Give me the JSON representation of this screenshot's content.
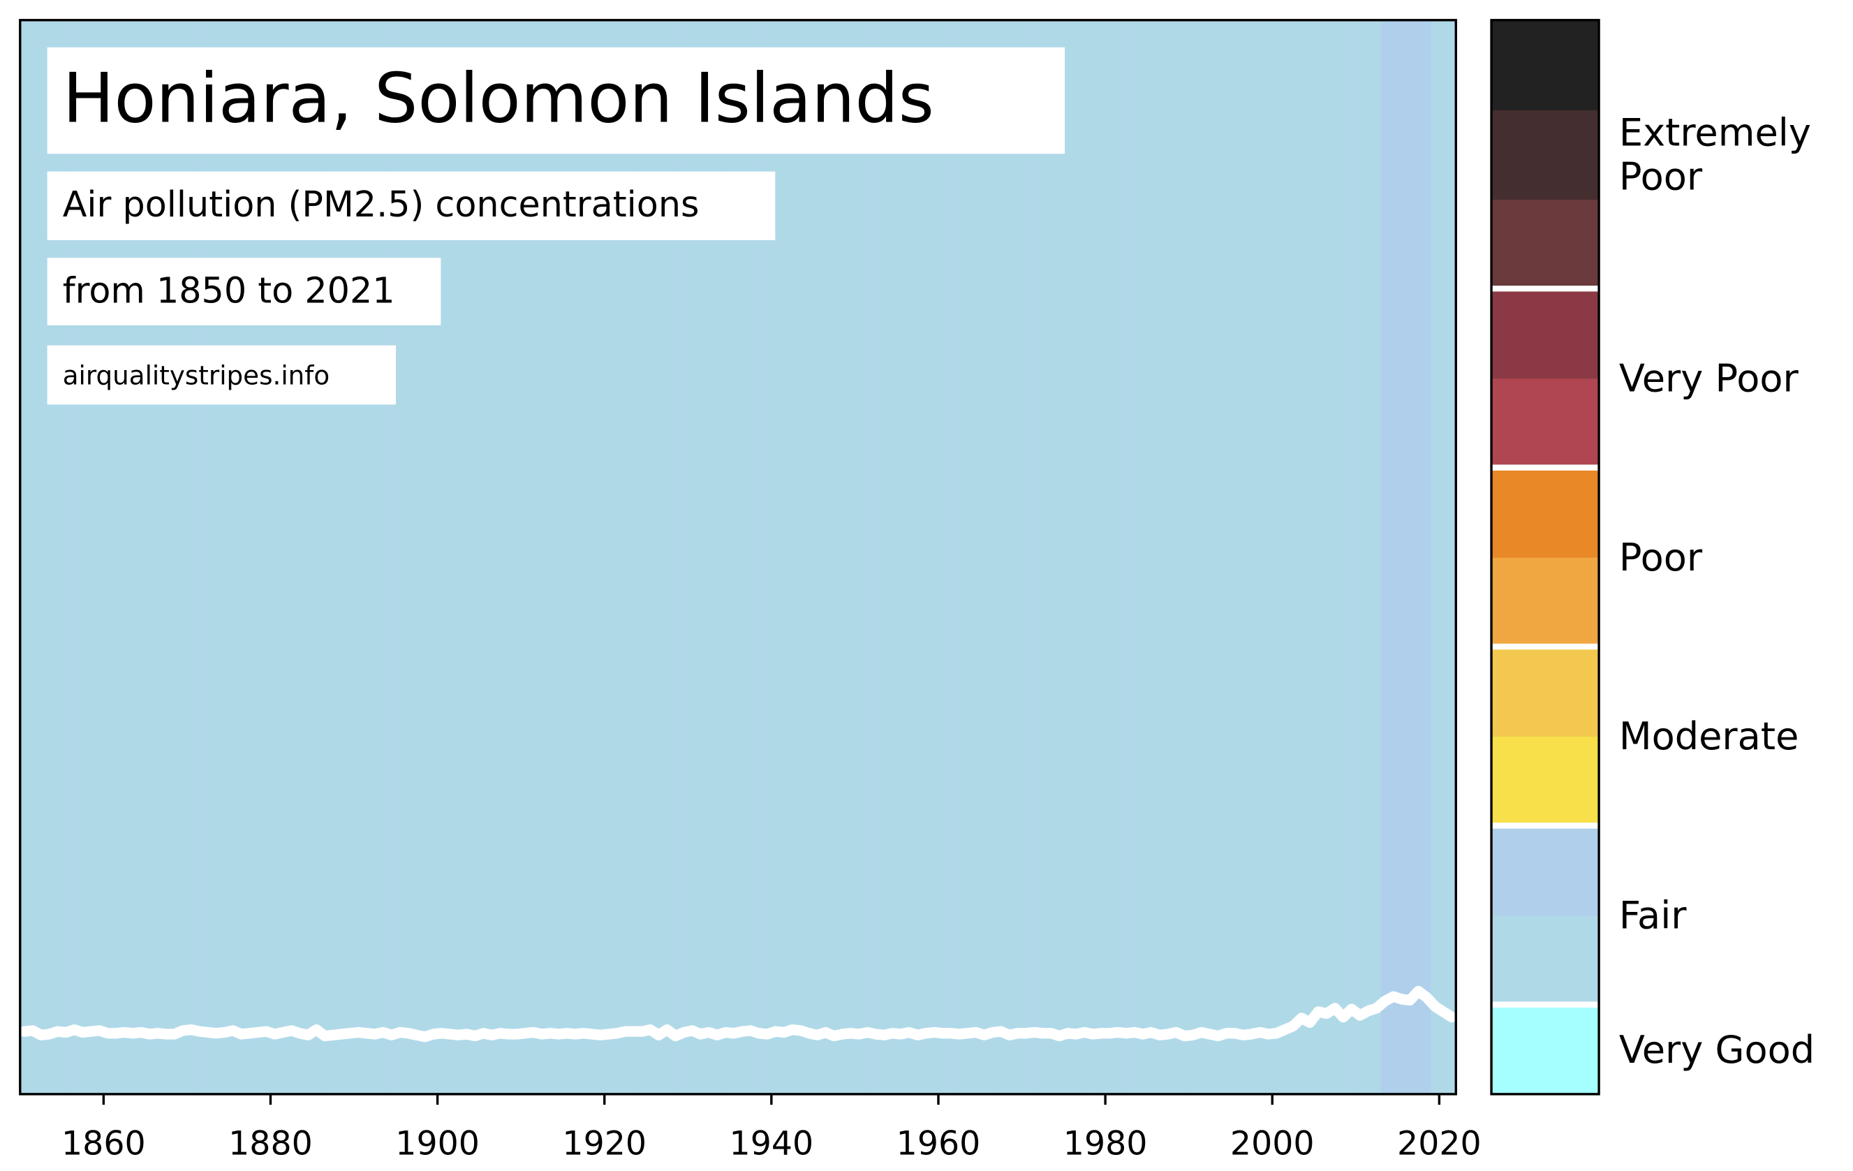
{
  "chart_data": {
    "type": "stripes",
    "title": "Honiara, Solomon Islands",
    "subtitle": "Air pollution (PM2.5) concentrations",
    "period": "from 1850 to 2021",
    "source": "airqualitystripes.info",
    "x": [
      1850,
      1851,
      1852,
      1853,
      1854,
      1855,
      1856,
      1857,
      1858,
      1859,
      1860,
      1861,
      1862,
      1863,
      1864,
      1865,
      1866,
      1867,
      1868,
      1869,
      1870,
      1871,
      1872,
      1873,
      1874,
      1875,
      1876,
      1877,
      1878,
      1879,
      1880,
      1881,
      1882,
      1883,
      1884,
      1885,
      1886,
      1887,
      1888,
      1889,
      1890,
      1891,
      1892,
      1893,
      1894,
      1895,
      1896,
      1897,
      1898,
      1899,
      1900,
      1901,
      1902,
      1903,
      1904,
      1905,
      1906,
      1907,
      1908,
      1909,
      1910,
      1911,
      1912,
      1913,
      1914,
      1915,
      1916,
      1917,
      1918,
      1919,
      1920,
      1921,
      1922,
      1923,
      1924,
      1925,
      1926,
      1927,
      1928,
      1929,
      1930,
      1931,
      1932,
      1933,
      1934,
      1935,
      1936,
      1937,
      1938,
      1939,
      1940,
      1941,
      1942,
      1943,
      1944,
      1945,
      1946,
      1947,
      1948,
      1949,
      1950,
      1951,
      1952,
      1953,
      1954,
      1955,
      1956,
      1957,
      1958,
      1959,
      1960,
      1961,
      1962,
      1963,
      1964,
      1965,
      1966,
      1967,
      1968,
      1969,
      1970,
      1971,
      1972,
      1973,
      1974,
      1975,
      1976,
      1977,
      1978,
      1979,
      1980,
      1981,
      1982,
      1983,
      1984,
      1985,
      1986,
      1987,
      1988,
      1989,
      1990,
      1991,
      1992,
      1993,
      1994,
      1995,
      1996,
      1997,
      1998,
      1999,
      2000,
      2001,
      2002,
      2003,
      2004,
      2005,
      2006,
      2007,
      2008,
      2009,
      2010,
      2011,
      2012,
      2013,
      2014,
      2015,
      2016,
      2017,
      2018,
      2019,
      2020,
      2021
    ],
    "series": [
      {
        "color": "#ffffff",
        "values": [
          7.0,
          7.1,
          6.6,
          6.7,
          7.0,
          6.9,
          7.2,
          6.9,
          7.0,
          7.1,
          6.8,
          6.8,
          6.9,
          6.8,
          6.9,
          6.7,
          6.8,
          6.7,
          6.7,
          7.1,
          7.2,
          7.0,
          6.9,
          6.8,
          6.9,
          7.1,
          6.7,
          6.8,
          6.9,
          7.0,
          6.7,
          6.9,
          7.1,
          6.8,
          6.6,
          7.2,
          6.5,
          6.6,
          6.7,
          6.8,
          6.9,
          6.8,
          6.7,
          6.9,
          6.6,
          6.9,
          6.8,
          6.6,
          6.4,
          6.7,
          6.8,
          6.7,
          6.6,
          6.7,
          6.5,
          6.8,
          6.6,
          6.8,
          6.7,
          6.7,
          6.8,
          6.9,
          6.7,
          6.8,
          6.7,
          6.8,
          6.7,
          6.8,
          6.7,
          6.6,
          6.7,
          6.8,
          7.0,
          7.0,
          7.0,
          7.2,
          6.6,
          7.2,
          6.5,
          6.9,
          7.1,
          6.7,
          6.9,
          6.6,
          6.9,
          6.8,
          7.0,
          7.1,
          6.8,
          6.7,
          7.0,
          6.9,
          7.2,
          7.1,
          6.8,
          6.6,
          6.9,
          6.5,
          6.7,
          6.8,
          6.7,
          6.9,
          6.7,
          6.6,
          6.8,
          6.7,
          6.9,
          6.6,
          6.8,
          6.9,
          6.8,
          6.8,
          6.7,
          6.8,
          6.9,
          6.6,
          6.9,
          7.0,
          6.6,
          6.8,
          6.8,
          6.9,
          6.8,
          6.8,
          6.5,
          6.8,
          6.7,
          6.9,
          6.7,
          6.8,
          6.8,
          6.9,
          6.8,
          6.9,
          6.7,
          6.9,
          6.6,
          6.7,
          6.9,
          6.5,
          6.6,
          6.9,
          6.7,
          6.5,
          6.8,
          6.8,
          6.6,
          6.7,
          6.9,
          6.7,
          6.8,
          7.2,
          7.6,
          8.5,
          8.0,
          9.2,
          9.0,
          9.6,
          8.6,
          9.5,
          8.8,
          9.3,
          9.6,
          10.4,
          10.9,
          10.6,
          10.5,
          11.5,
          10.8,
          9.8,
          9.2,
          8.6
        ]
      }
    ],
    "stripe_colors": [
      "#b0d9e8",
      "#b0d9e8",
      "#b0d9e8",
      "#b0d9e8",
      "#b0d9e8",
      "#b0d9e8",
      "#b0d9e8",
      "#b0d9e8",
      "#b0d9e8",
      "#b0d9e8",
      "#b0d9e8",
      "#b0d9e8",
      "#b0d9e8",
      "#b0d9e8",
      "#b0d9e8",
      "#b0d9e8",
      "#b0d9e8",
      "#b0d9e8",
      "#b0d9e8",
      "#b0d9e8",
      "#b0d9e8",
      "#b0d9e8",
      "#b0d9e8",
      "#b0d9e8",
      "#b0d9e8",
      "#b0d9e8",
      "#b0d9e8",
      "#b0d9e8",
      "#b0d9e8",
      "#b0d9e8",
      "#b0d9e8",
      "#b0d9e8",
      "#b0d9e8",
      "#b0d9e8",
      "#b0d9e8",
      "#b0d9e8",
      "#b0d9e8",
      "#b0d9e8",
      "#b0d9e8",
      "#b0d9e8",
      "#b0d9e8",
      "#b0d9e8",
      "#b0d9e8",
      "#b0d9e8",
      "#b0d9e8",
      "#b0d9e8",
      "#b0d9e8",
      "#b0d9e8",
      "#b0d9e8",
      "#b0d9e8",
      "#b0d9e8",
      "#b0d9e8",
      "#b0d9e8",
      "#b0d9e8",
      "#b0d9e8",
      "#b0d9e8",
      "#b0d9e8",
      "#b0d9e8",
      "#b0d9e8",
      "#b0d9e8",
      "#b0d9e8",
      "#b0d9e8",
      "#b0d9e8",
      "#b0d9e8",
      "#b0d9e8",
      "#b0d9e8",
      "#b0d9e8",
      "#b0d9e8",
      "#b0d9e8",
      "#b0d9e8",
      "#b0d9e8",
      "#b0d9e8",
      "#b0d9e8",
      "#b0d9e8",
      "#b0d9e8",
      "#b0d9e8",
      "#b0d9e8",
      "#b0d9e8",
      "#b0d9e8",
      "#b0d9e8",
      "#b0d9e8",
      "#b0d9e8",
      "#b0d9e8",
      "#b0d9e8",
      "#b0d9e8",
      "#b0d9e8",
      "#b0d9e8",
      "#b0d9e8",
      "#b0d9e8",
      "#b0d9e8",
      "#b0d9e8",
      "#b0d9e8",
      "#b0d9e8",
      "#b0d9e8",
      "#b0d9e8",
      "#b0d9e8",
      "#b0d9e8",
      "#b0d9e8",
      "#b0d9e8",
      "#b0d9e8",
      "#b0d9e8",
      "#b0d9e8",
      "#b0d9e8",
      "#b0d9e8",
      "#b0d9e8",
      "#b0d9e8",
      "#b0d9e8",
      "#b0d9e8",
      "#b0d9e8",
      "#b0d9e8",
      "#b0d9e8",
      "#b0d9e8",
      "#b0d9e8",
      "#b0d9e8",
      "#b0d9e8",
      "#b0d9e8",
      "#b0d9e8",
      "#b0d9e8",
      "#b0d9e8",
      "#b0d9e8",
      "#b0d9e8",
      "#b0d9e8",
      "#b0d9e8",
      "#b0d9e8",
      "#b0d9e8",
      "#b0d9e8",
      "#b0d9e8",
      "#b0d9e8",
      "#b0d9e8",
      "#b0d9e8",
      "#b0d9e8",
      "#b0d9e8",
      "#b0d9e8",
      "#b0d9e8",
      "#b0d9e8",
      "#b0d9e8",
      "#b0d9e8",
      "#b0d9e8",
      "#b0d9e8",
      "#b0d9e8",
      "#b0d9e8",
      "#b0d9e8",
      "#b0d9e8",
      "#b0d9e8",
      "#b0d9e8",
      "#b0d9e8",
      "#b0d9e8",
      "#b0d9e8",
      "#b0d9e8",
      "#b0d9e8",
      "#b0d9e8",
      "#b0d9e8",
      "#b0d9e8",
      "#b0d9e8",
      "#b0d9e8",
      "#b0d9e8",
      "#b0d9e8",
      "#b0d9e8",
      "#b0d9e8",
      "#b0d9e8",
      "#b0d9e8",
      "#b0d9e8",
      "#b0d9e8",
      "#b0cfeb",
      "#b0cfeb",
      "#b0cfeb",
      "#b0cfeb",
      "#b0cfeb",
      "#b0cfeb",
      "#b0d9e8",
      "#b0d9e8",
      "#b0d9e8"
    ],
    "xlim": [
      1850,
      2022
    ],
    "xticks": [
      1860,
      1880,
      1900,
      1920,
      1940,
      1960,
      1980,
      2000,
      2020
    ],
    "ylim": [
      0,
      120
    ],
    "colorbar": [
      {
        "label": "Very Good",
        "colors": [
          "#a6ffff"
        ]
      },
      {
        "label": "Fair",
        "colors": [
          "#b0d9e8",
          "#b0cfeb"
        ]
      },
      {
        "label": "Moderate",
        "colors": [
          "#f7e04a",
          "#f2c94e"
        ]
      },
      {
        "label": "Poor",
        "colors": [
          "#f0a741",
          "#e88826"
        ]
      },
      {
        "label": "Very Poor",
        "colors": [
          "#b04652",
          "#8b3a45"
        ]
      },
      {
        "label": "Extremely\nPoor",
        "colors": [
          "#6b3a3c",
          "#452e2f",
          "#222222"
        ]
      }
    ]
  }
}
